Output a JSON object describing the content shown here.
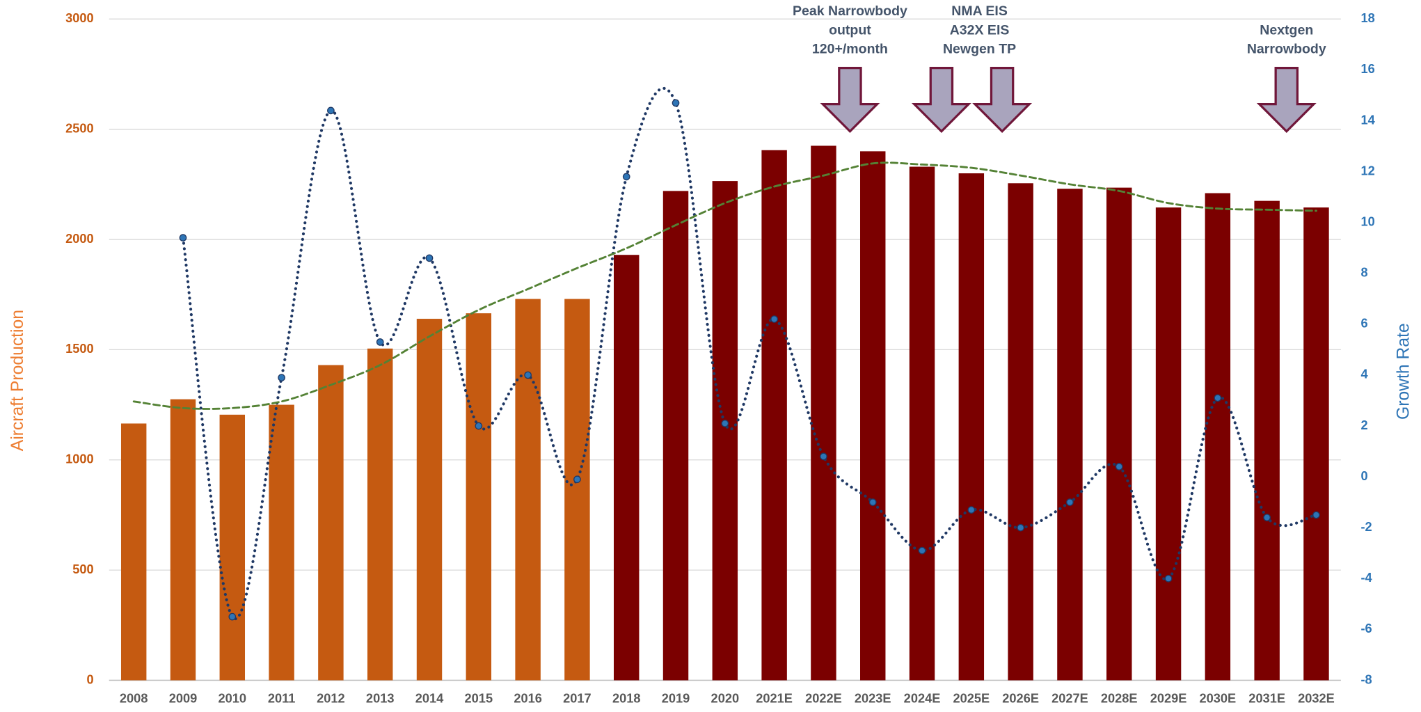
{
  "chart_data": {
    "type": "bar_line",
    "y_label": "Aircraft Production",
    "y2_label": "Growth Rate",
    "categories": [
      "2008",
      "2009",
      "2010",
      "2011",
      "2012",
      "2013",
      "2014",
      "2015",
      "2016",
      "2017",
      "2018",
      "2019",
      "2020",
      "2021E",
      "2022E",
      "2023E",
      "2024E",
      "2025E",
      "2026E",
      "2027E",
      "2028E",
      "2029E",
      "2030E",
      "2031E",
      "2032E"
    ],
    "series": [
      {
        "type": "bar",
        "colors": [
          "#c55a11",
          "#c55a11",
          "#c55a11",
          "#c55a11",
          "#c55a11",
          "#c55a11",
          "#c55a11",
          "#c55a11",
          "#c55a11",
          "#c55a11",
          "#7b0000",
          "#7b0000",
          "#7b0000",
          "#7b0000",
          "#7b0000",
          "#7b0000",
          "#7b0000",
          "#7b0000",
          "#7b0000",
          "#7b0000",
          "#7b0000",
          "#7b0000",
          "#7b0000",
          "#7b0000",
          "#7b0000"
        ],
        "values": [
          1165,
          1275,
          1205,
          1250,
          1430,
          1505,
          1640,
          1665,
          1730,
          1730,
          1930,
          2220,
          2265,
          2405,
          2425,
          2400,
          2330,
          2300,
          2255,
          2230,
          2235,
          2145,
          2210,
          2175,
          2145
        ]
      },
      {
        "type": "line",
        "color": "#1f3864",
        "marker_color": "#2e75b6",
        "style": "dotted",
        "axis": "y2",
        "values": [
          null,
          9.4,
          -5.5,
          3.9,
          14.4,
          5.3,
          8.6,
          2.0,
          4.0,
          -0.1,
          11.8,
          14.7,
          2.1,
          6.2,
          0.8,
          -1.0,
          -2.9,
          -1.3,
          -2.0,
          -1.0,
          0.4,
          -4.0,
          3.1,
          -1.6,
          -1.5
        ]
      },
      {
        "type": "line",
        "color": "#548235",
        "style": "dashed",
        "values": [
          1265,
          1235,
          1235,
          1265,
          1340,
          1430,
          1560,
          1680,
          1775,
          1870,
          1960,
          2065,
          2165,
          2240,
          2290,
          2345,
          2340,
          2325,
          2290,
          2250,
          2220,
          2165,
          2140,
          2135,
          2130
        ]
      }
    ],
    "ylim": [
      0,
      3000
    ],
    "yticks": [
      0,
      500,
      1000,
      1500,
      2000,
      2500,
      3000
    ],
    "y2lim": [
      -8,
      18
    ],
    "y2ticks": [
      -8,
      -6,
      -4,
      -2,
      0,
      2,
      4,
      6,
      8,
      10,
      12,
      14,
      16,
      18
    ],
    "grid": true,
    "annotations": [
      {
        "lines": [
          "Peak Narrowbody",
          "output",
          "120+/month"
        ]
      },
      {
        "lines": [
          "NMA EIS",
          "A32X EIS",
          "Newgen TP"
        ]
      },
      {
        "lines": [
          "Nextgen",
          "Narrowbody"
        ]
      }
    ]
  }
}
